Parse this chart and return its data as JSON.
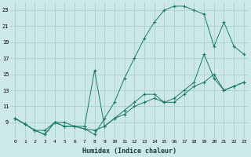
{
  "xlabel": "Humidex (Indice chaleur)",
  "bg_color": "#cce8e8",
  "grid_color": "#aacfcf",
  "line_color": "#1a7a6a",
  "xlim": [
    -0.5,
    23.5
  ],
  "ylim": [
    7,
    24
  ],
  "yticks": [
    9,
    11,
    13,
    15,
    17,
    19,
    21,
    23
  ],
  "xticks": [
    0,
    1,
    2,
    3,
    4,
    5,
    6,
    7,
    8,
    9,
    10,
    11,
    12,
    13,
    14,
    15,
    16,
    17,
    18,
    19,
    20,
    21,
    22,
    23
  ],
  "series1_x": [
    0,
    1,
    2,
    3,
    4,
    5,
    6,
    7,
    8,
    9,
    10,
    11,
    12,
    13,
    14,
    15,
    16,
    17,
    18,
    19,
    20,
    21,
    22,
    23
  ],
  "series1_y": [
    9.5,
    8.8,
    8.0,
    7.5,
    9.0,
    9.0,
    8.5,
    8.2,
    7.5,
    9.5,
    11.5,
    14.5,
    17.0,
    19.5,
    21.5,
    23.0,
    23.5,
    23.5,
    23.0,
    22.5,
    18.5,
    21.5,
    18.5,
    17.5
  ],
  "series2_x": [
    0,
    1,
    2,
    3,
    4,
    5,
    6,
    7,
    8,
    9,
    10,
    11,
    12,
    13,
    14,
    15,
    16,
    17,
    18,
    19,
    20,
    21,
    22,
    23
  ],
  "series2_y": [
    9.5,
    8.8,
    8.0,
    8.0,
    9.0,
    8.5,
    8.5,
    8.5,
    15.5,
    8.5,
    9.5,
    10.5,
    11.5,
    12.5,
    12.5,
    11.5,
    12.0,
    13.0,
    14.0,
    17.5,
    14.5,
    13.0,
    13.5,
    14.0
  ],
  "series3_x": [
    0,
    1,
    2,
    3,
    4,
    5,
    6,
    7,
    8,
    9,
    10,
    11,
    12,
    13,
    14,
    15,
    16,
    17,
    18,
    19,
    20,
    21,
    22,
    23
  ],
  "series3_y": [
    9.5,
    8.8,
    8.0,
    7.5,
    9.0,
    8.5,
    8.5,
    8.2,
    8.0,
    8.5,
    9.5,
    10.0,
    11.0,
    11.5,
    12.0,
    11.5,
    11.5,
    12.5,
    13.5,
    14.0,
    15.0,
    13.0,
    13.5,
    14.0
  ]
}
